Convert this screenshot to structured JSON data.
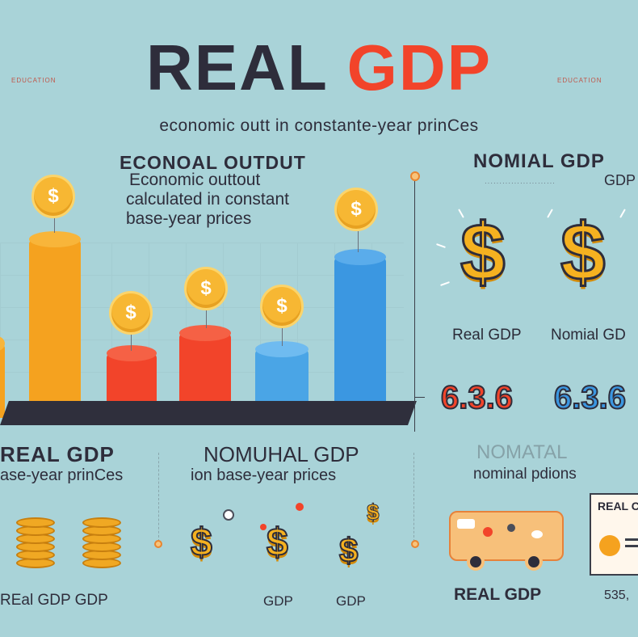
{
  "header": {
    "title_part1": "REAL",
    "title_part2": "GDP",
    "tag_left": "EDUCATION",
    "tag_right": "EDUCATION",
    "subtitle": "economic outt in constante-year prinCes"
  },
  "left_panel": {
    "heading": "ECONOAL OUTDUT",
    "desc_line1": "Economic outtout",
    "desc_line2": "calculated in constant",
    "desc_line3": "base-year prices",
    "coin_symbol": "$"
  },
  "right_panel": {
    "heading": "NOMIAL GDP",
    "sub": "GDP",
    "label_real": "Real GDP",
    "label_nominal": "Nomial GD",
    "num_left": "6.3.6",
    "num_right": "6.3.6"
  },
  "lower": {
    "col1_title": "REAL GDP",
    "col1_sub": "ase-year prinCes",
    "col2_title": "NOMUHAL GDP",
    "col2_sub": "ion base-year prices",
    "col3_title": "NOMATAL",
    "col3_sub": "nominal pdions"
  },
  "bottom": {
    "label1": "REal GDP GDP",
    "label2": "GDP",
    "label3": "GDP",
    "label4": "REAL GDP",
    "card_title": "REAL C",
    "card_num": "535,"
  },
  "colors": {
    "background": "#a9d3d8",
    "orange": "#f5a21f",
    "red": "#f2442a",
    "blue": "#3b97e1",
    "dark": "#2e2d3b"
  }
}
